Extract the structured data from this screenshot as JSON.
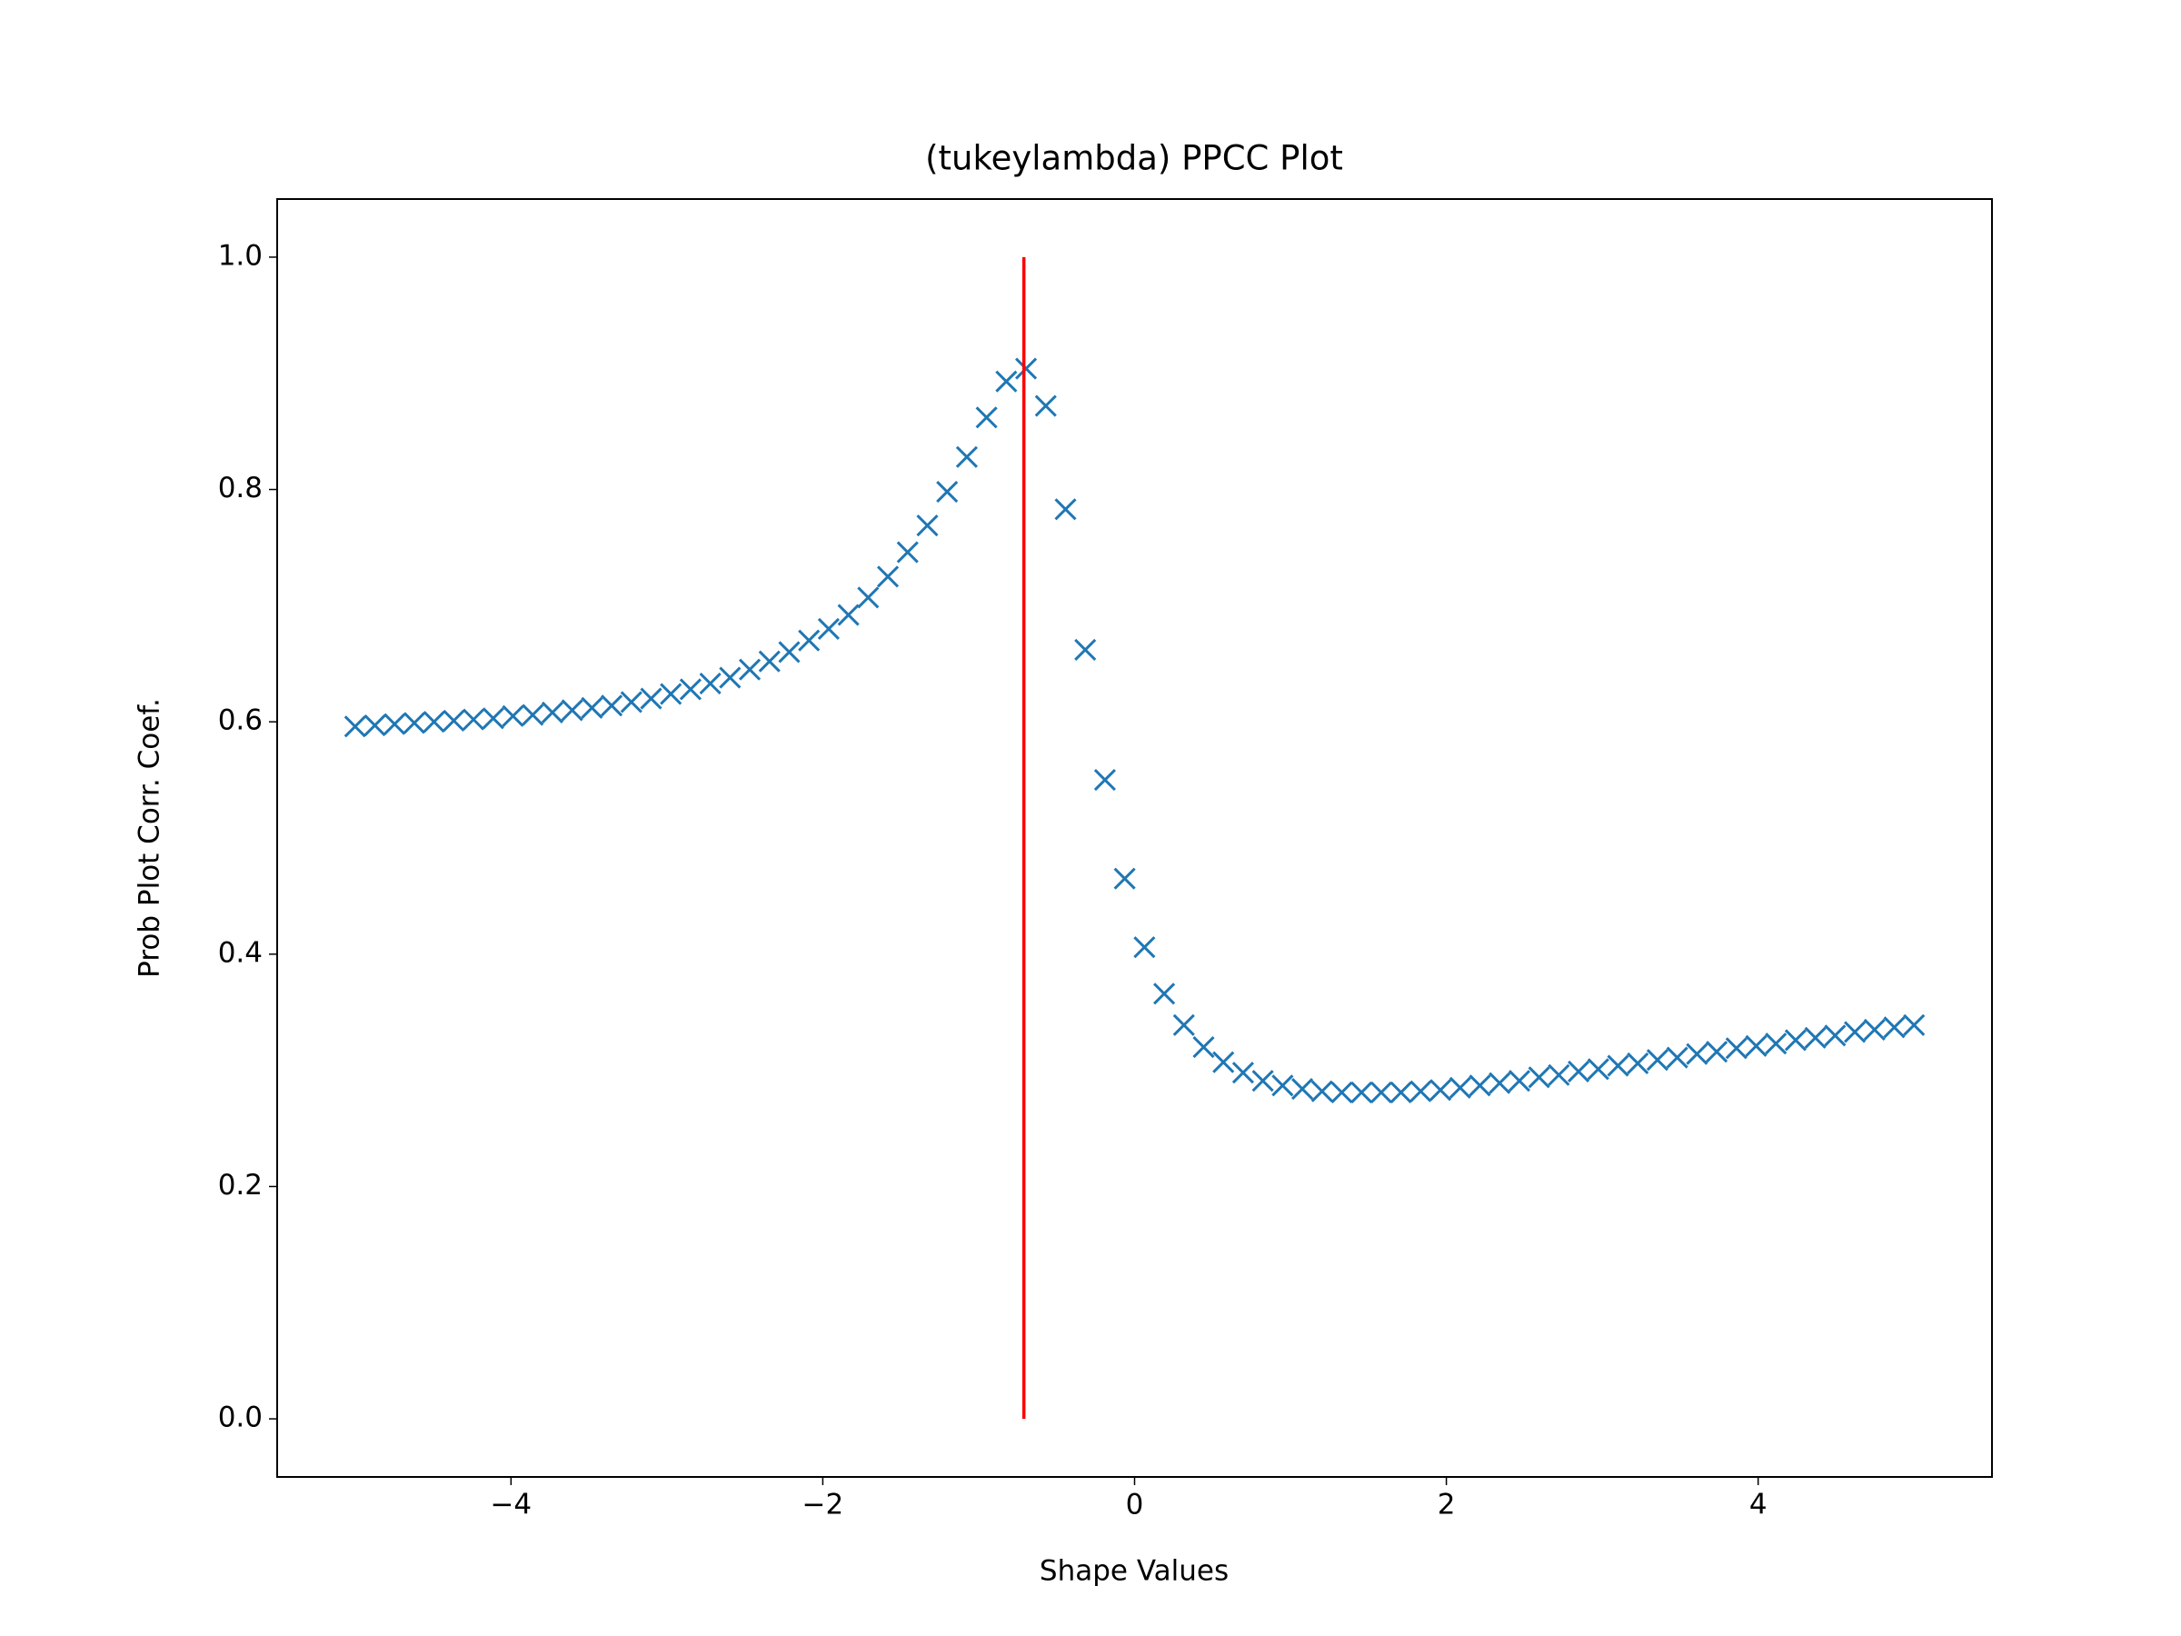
{
  "chart_data": {
    "type": "scatter",
    "title": "(tukeylambda) PPCC Plot",
    "x_label": "Shape Values",
    "y_label": "Prob Plot Corr. Coef.",
    "marker": "x",
    "color": "#1f77b4",
    "grid": false,
    "x": [
      -5,
      -4.8734,
      -4.7468,
      -4.6203,
      -4.4937,
      -4.3671,
      -4.2405,
      -4.1139,
      -3.9873,
      -3.8608,
      -3.7342,
      -3.6076,
      -3.481,
      -3.3544,
      -3.2278,
      -3.1013,
      -2.9747,
      -2.8481,
      -2.7215,
      -2.5949,
      -2.4684,
      -2.3418,
      -2.2152,
      -2.0886,
      -1.962,
      -1.8354,
      -1.7089,
      -1.5823,
      -1.4557,
      -1.3291,
      -1.2025,
      -1.0759,
      -0.9494,
      -0.8228,
      -0.6962,
      -0.5696,
      -0.443,
      -0.3165,
      -0.1899,
      -0.0633,
      0.0633,
      0.1899,
      0.3165,
      0.443,
      0.5696,
      0.6962,
      0.8228,
      0.9494,
      1.0759,
      1.2025,
      1.3291,
      1.4557,
      1.5823,
      1.7089,
      1.8354,
      1.962,
      2.0886,
      2.2152,
      2.3418,
      2.4684,
      2.5949,
      2.7215,
      2.8481,
      2.9747,
      3.1013,
      3.2278,
      3.3544,
      3.481,
      3.6076,
      3.7342,
      3.8608,
      3.9873,
      4.1139,
      4.2405,
      4.3671,
      4.4937,
      4.6203,
      4.7468,
      4.8734,
      5
    ],
    "values": [
      0.596,
      0.597,
      0.598,
      0.599,
      0.6,
      0.601,
      0.602,
      0.603,
      0.605,
      0.606,
      0.608,
      0.61,
      0.612,
      0.614,
      0.617,
      0.62,
      0.624,
      0.628,
      0.633,
      0.638,
      0.645,
      0.652,
      0.66,
      0.67,
      0.68,
      0.692,
      0.707,
      0.725,
      0.746,
      0.769,
      0.798,
      0.828,
      0.862,
      0.893,
      0.904,
      0.872,
      0.783,
      0.662,
      0.55,
      0.465,
      0.406,
      0.366,
      0.339,
      0.32,
      0.307,
      0.298,
      0.291,
      0.287,
      0.284,
      0.282,
      0.281,
      0.281,
      0.281,
      0.281,
      0.282,
      0.283,
      0.285,
      0.287,
      0.289,
      0.291,
      0.294,
      0.296,
      0.299,
      0.301,
      0.304,
      0.306,
      0.309,
      0.311,
      0.314,
      0.316,
      0.319,
      0.321,
      0.323,
      0.326,
      0.328,
      0.33,
      0.333,
      0.335,
      0.337,
      0.339
    ],
    "vline": {
      "x": -0.71,
      "ymin": 0,
      "ymax": 1,
      "color": "#ff0000"
    },
    "xlim": [
      -5.5,
      5.5
    ],
    "ylim": [
      -0.05,
      1.05
    ],
    "xticks": [
      {
        "value": -4,
        "label": "−4"
      },
      {
        "value": -2,
        "label": "−2"
      },
      0,
      2,
      4
    ],
    "yticks": [
      {
        "value": 0,
        "label": "0.0"
      },
      0.2,
      0.4,
      0.6,
      0.8,
      {
        "value": 1,
        "label": "1.0"
      }
    ]
  }
}
